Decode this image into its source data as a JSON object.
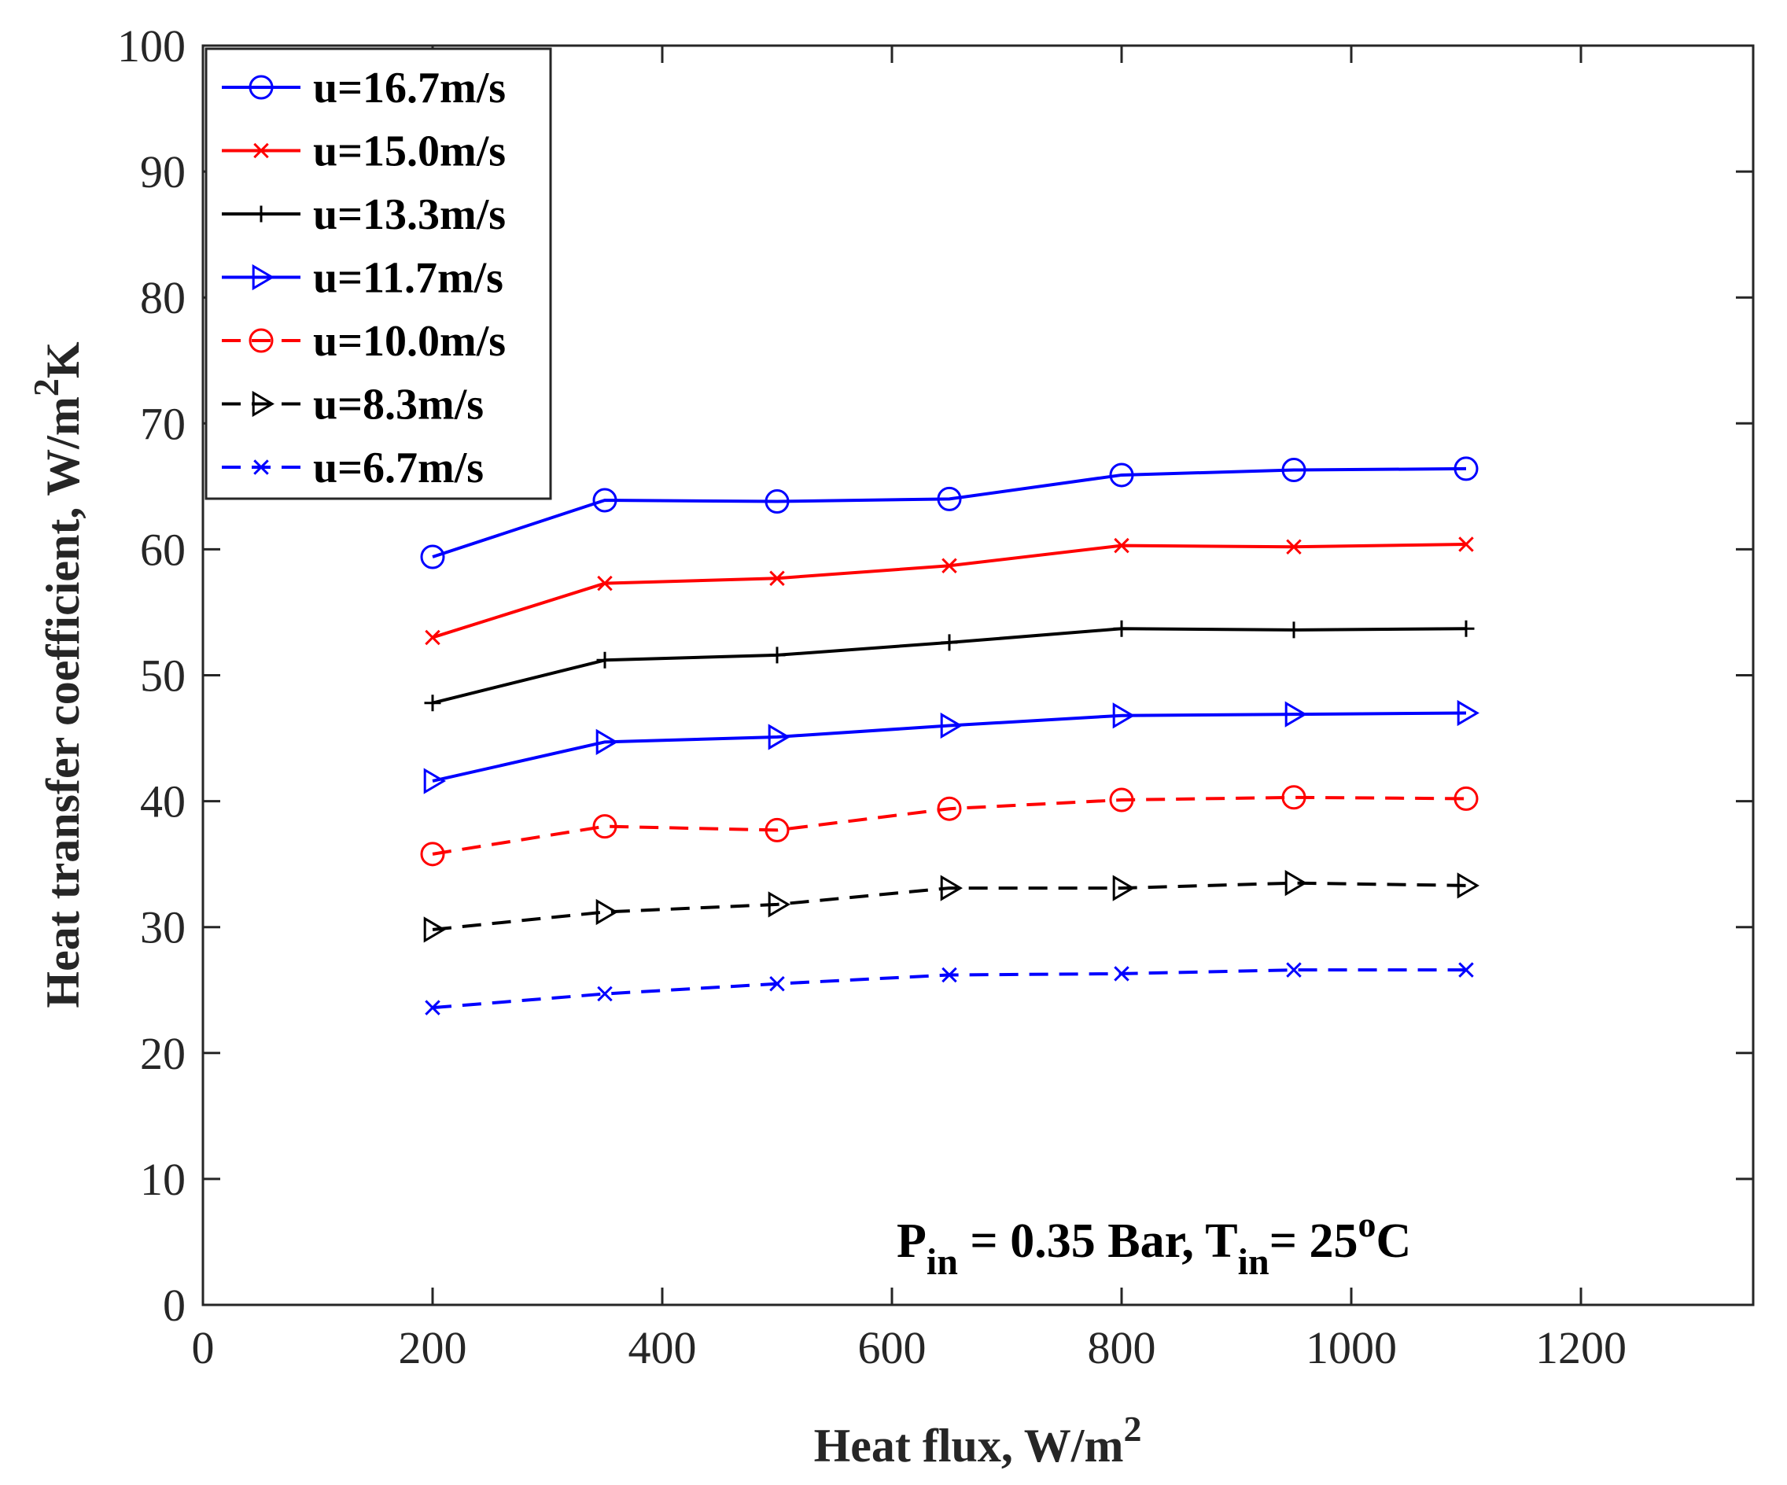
{
  "chart_data": {
    "type": "line",
    "title": "",
    "xlabel": "Heat flux, W/m",
    "xlabel_sup": "2",
    "ylabel": "Heat transfer coefficient, W/m",
    "ylabel_sup": "2",
    "ylabel_tail": "K",
    "xlim": [
      0,
      1350
    ],
    "ylim": [
      0,
      100
    ],
    "xticks": [
      0,
      200,
      400,
      600,
      800,
      1000,
      1200
    ],
    "yticks": [
      0,
      10,
      20,
      30,
      40,
      50,
      60,
      70,
      80,
      90,
      100
    ],
    "grid": false,
    "legend_location": "top-left",
    "x": [
      200,
      350,
      500,
      650,
      800,
      950,
      1100
    ],
    "series": [
      {
        "name": "u=16.7m/s",
        "color": "#0000ff",
        "dash": "solid",
        "marker": "circle",
        "values": [
          59.4,
          63.9,
          63.8,
          64.0,
          65.9,
          66.3,
          66.4
        ]
      },
      {
        "name": "u=15.0m/s",
        "color": "#ff0000",
        "dash": "solid",
        "marker": "x",
        "values": [
          53.0,
          57.3,
          57.7,
          58.7,
          60.3,
          60.2,
          60.4
        ]
      },
      {
        "name": "u=13.3m/s",
        "color": "#000000",
        "dash": "solid",
        "marker": "plus",
        "values": [
          47.8,
          51.2,
          51.6,
          52.6,
          53.7,
          53.6,
          53.7
        ]
      },
      {
        "name": "u=11.7m/s",
        "color": "#0000ff",
        "dash": "solid",
        "marker": "triangle-right",
        "values": [
          41.6,
          44.7,
          45.1,
          46.0,
          46.8,
          46.9,
          47.0
        ]
      },
      {
        "name": "u=10.0m/s",
        "color": "#ff0000",
        "dash": "dashed",
        "marker": "circle",
        "values": [
          35.8,
          38.0,
          37.7,
          39.4,
          40.1,
          40.3,
          40.2
        ]
      },
      {
        "name": "u=8.3m/s",
        "color": "#000000",
        "dash": "dashed",
        "marker": "triangle-right",
        "values": [
          29.8,
          31.2,
          31.8,
          33.1,
          33.1,
          33.5,
          33.3
        ]
      },
      {
        "name": "u=6.7m/s",
        "color": "#0000ff",
        "dash": "dashed",
        "marker": "x",
        "values": [
          23.6,
          24.7,
          25.5,
          26.2,
          26.3,
          26.6,
          26.6
        ]
      }
    ],
    "annotation": {
      "p_main": "P",
      "p_sub": "in",
      "middle": " = 0.35 Bar, T",
      "t_sub": "in",
      "t_value": "= 25",
      "deg_sup": "o",
      "unit": "C"
    }
  }
}
